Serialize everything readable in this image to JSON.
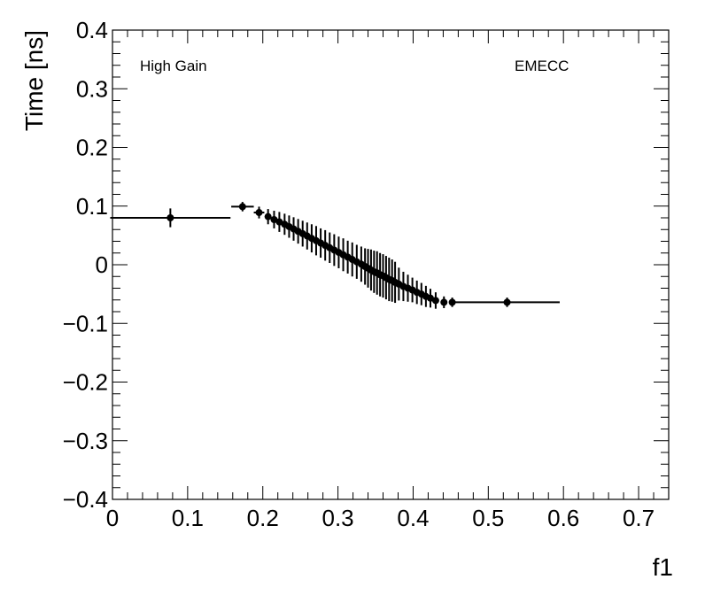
{
  "chart_data": {
    "type": "scatter",
    "title": "",
    "xlabel": "f1",
    "ylabel": "Time [ns]",
    "xlim": [
      0,
      0.74
    ],
    "ylim": [
      -0.4,
      0.4
    ],
    "x_ticks": [
      "0",
      "0.1",
      "0.2",
      "0.3",
      "0.4",
      "0.5",
      "0.6",
      "0.7"
    ],
    "y_ticks": [
      "−0.4",
      "−0.3",
      "−0.2",
      "−0.1",
      "0",
      "0.1",
      "0.2",
      "0.3",
      "0.4"
    ],
    "annotations": {
      "left": "High Gain",
      "right": "EMECC"
    },
    "grid": false,
    "series": [
      {
        "points": [
          {
            "x": 0.077,
            "y": 0.08,
            "xerr": 0.08,
            "yerr": 0.016
          },
          {
            "x": 0.173,
            "y": 0.099,
            "xerr": 0.015,
            "yerr": 0.008
          },
          {
            "x": 0.195,
            "y": 0.089,
            "xerr": 0.007,
            "yerr": 0.01
          },
          {
            "x": 0.207,
            "y": 0.082,
            "xerr": 0.004,
            "yerr": 0.013
          },
          {
            "x": 0.215,
            "y": 0.077,
            "xerr": 0.003,
            "yerr": 0.015
          },
          {
            "x": 0.222,
            "y": 0.073,
            "xerr": 0.002,
            "yerr": 0.017
          },
          {
            "x": 0.229,
            "y": 0.069,
            "xerr": 0.002,
            "yerr": 0.018
          },
          {
            "x": 0.235,
            "y": 0.065,
            "xerr": 0.002,
            "yerr": 0.019
          },
          {
            "x": 0.241,
            "y": 0.061,
            "xerr": 0.002,
            "yerr": 0.02
          },
          {
            "x": 0.247,
            "y": 0.057,
            "xerr": 0.002,
            "yerr": 0.021
          },
          {
            "x": 0.253,
            "y": 0.053,
            "xerr": 0.002,
            "yerr": 0.022
          },
          {
            "x": 0.259,
            "y": 0.049,
            "xerr": 0.002,
            "yerr": 0.023
          },
          {
            "x": 0.265,
            "y": 0.045,
            "xerr": 0.002,
            "yerr": 0.024
          },
          {
            "x": 0.271,
            "y": 0.041,
            "xerr": 0.002,
            "yerr": 0.025
          },
          {
            "x": 0.277,
            "y": 0.037,
            "xerr": 0.002,
            "yerr": 0.025
          },
          {
            "x": 0.283,
            "y": 0.033,
            "xerr": 0.002,
            "yerr": 0.026
          },
          {
            "x": 0.289,
            "y": 0.029,
            "xerr": 0.002,
            "yerr": 0.026
          },
          {
            "x": 0.295,
            "y": 0.025,
            "xerr": 0.002,
            "yerr": 0.027
          },
          {
            "x": 0.301,
            "y": 0.021,
            "xerr": 0.002,
            "yerr": 0.027
          },
          {
            "x": 0.307,
            "y": 0.017,
            "xerr": 0.002,
            "yerr": 0.028
          },
          {
            "x": 0.313,
            "y": 0.013,
            "xerr": 0.002,
            "yerr": 0.028
          },
          {
            "x": 0.319,
            "y": 0.009,
            "xerr": 0.002,
            "yerr": 0.029
          },
          {
            "x": 0.325,
            "y": 0.005,
            "xerr": 0.002,
            "yerr": 0.029
          },
          {
            "x": 0.331,
            "y": 0.001,
            "xerr": 0.002,
            "yerr": 0.03
          },
          {
            "x": 0.336,
            "y": -0.003,
            "xerr": 0.002,
            "yerr": 0.031
          },
          {
            "x": 0.34,
            "y": -0.006,
            "xerr": 0.001,
            "yerr": 0.033
          },
          {
            "x": 0.344,
            "y": -0.009,
            "xerr": 0.001,
            "yerr": 0.035
          },
          {
            "x": 0.348,
            "y": -0.012,
            "xerr": 0.001,
            "yerr": 0.036
          },
          {
            "x": 0.352,
            "y": -0.014,
            "xerr": 0.001,
            "yerr": 0.037
          },
          {
            "x": 0.356,
            "y": -0.017,
            "xerr": 0.001,
            "yerr": 0.037
          },
          {
            "x": 0.36,
            "y": -0.019,
            "xerr": 0.001,
            "yerr": 0.037
          },
          {
            "x": 0.364,
            "y": -0.022,
            "xerr": 0.001,
            "yerr": 0.037
          },
          {
            "x": 0.368,
            "y": -0.025,
            "xerr": 0.001,
            "yerr": 0.037
          },
          {
            "x": 0.372,
            "y": -0.027,
            "xerr": 0.001,
            "yerr": 0.036
          },
          {
            "x": 0.376,
            "y": -0.03,
            "xerr": 0.001,
            "yerr": 0.035
          },
          {
            "x": 0.381,
            "y": -0.033,
            "xerr": 0.002,
            "yerr": 0.028
          },
          {
            "x": 0.387,
            "y": -0.037,
            "xerr": 0.002,
            "yerr": 0.025
          },
          {
            "x": 0.393,
            "y": -0.04,
            "xerr": 0.002,
            "yerr": 0.023
          },
          {
            "x": 0.399,
            "y": -0.043,
            "xerr": 0.002,
            "yerr": 0.021
          },
          {
            "x": 0.405,
            "y": -0.047,
            "xerr": 0.002,
            "yerr": 0.02
          },
          {
            "x": 0.411,
            "y": -0.05,
            "xerr": 0.002,
            "yerr": 0.019
          },
          {
            "x": 0.417,
            "y": -0.054,
            "xerr": 0.002,
            "yerr": 0.018
          },
          {
            "x": 0.423,
            "y": -0.057,
            "xerr": 0.002,
            "yerr": 0.016
          },
          {
            "x": 0.43,
            "y": -0.061,
            "xerr": 0.003,
            "yerr": 0.014
          },
          {
            "x": 0.441,
            "y": -0.064,
            "xerr": 0.004,
            "yerr": 0.01
          },
          {
            "x": 0.452,
            "y": -0.064,
            "xerr": 0.004,
            "yerr": 0.008
          },
          {
            "x": 0.525,
            "y": -0.064,
            "xerr": 0.07,
            "yerr": 0.008
          }
        ]
      }
    ]
  }
}
